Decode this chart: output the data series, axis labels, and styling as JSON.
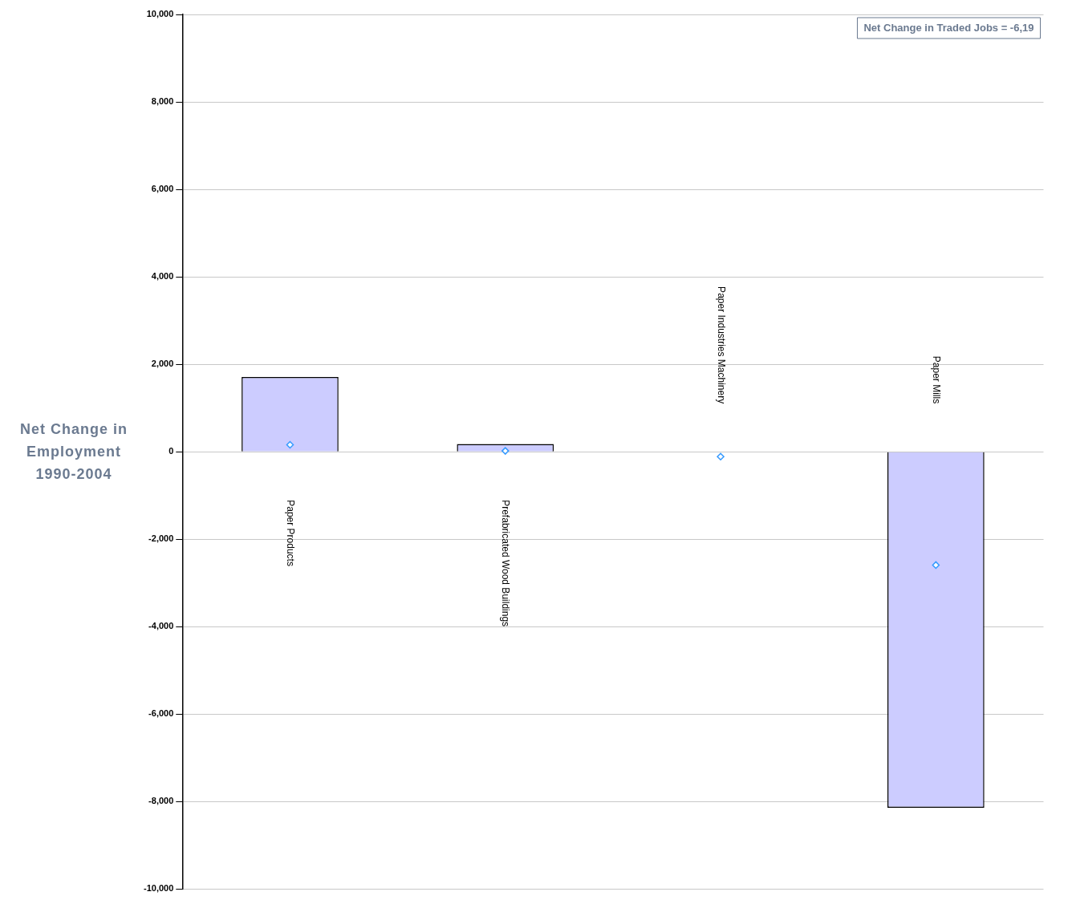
{
  "chart_data": {
    "type": "bar",
    "ylabel": "Net Change in Employment 1990-2004",
    "categories": [
      "Paper Products",
      "Prefabricated Wood Buildings",
      "Paper Industries Machinery",
      "Paper Mills"
    ],
    "series": [
      {
        "color": "#ccccff",
        "values": [
          1710,
          180,
          0,
          -8140
        ]
      },
      {
        "type": "scatter",
        "color": "#3399ff",
        "x": [
          "Paper Products",
          "Prefabricated Wood Buildings",
          "Paper Industries Machinery",
          "Paper Mills"
        ],
        "values": [
          160,
          20,
          -110,
          -2590
        ]
      }
    ],
    "ylim": [
      -10000,
      10000
    ],
    "yticks": [
      {
        "value": -10000,
        "label": "-10,000"
      },
      {
        "value": -8000,
        "label": "-8,000"
      },
      {
        "value": -6000,
        "label": "-6,000"
      },
      {
        "value": -4000,
        "label": "-4,000"
      },
      {
        "value": -2000,
        "label": "-2,000"
      },
      0,
      {
        "value": 2000,
        "label": "2,000"
      },
      {
        "value": 4000,
        "label": "4,000"
      },
      {
        "value": 6000,
        "label": "6,000"
      },
      {
        "value": 8000,
        "label": "8,000"
      },
      {
        "value": 10000,
        "label": "10,000"
      }
    ],
    "grid": "y",
    "marker": "diamond",
    "legend": false,
    "annotations": [
      "Net Change in Traded Jobs = -6,19"
    ]
  }
}
